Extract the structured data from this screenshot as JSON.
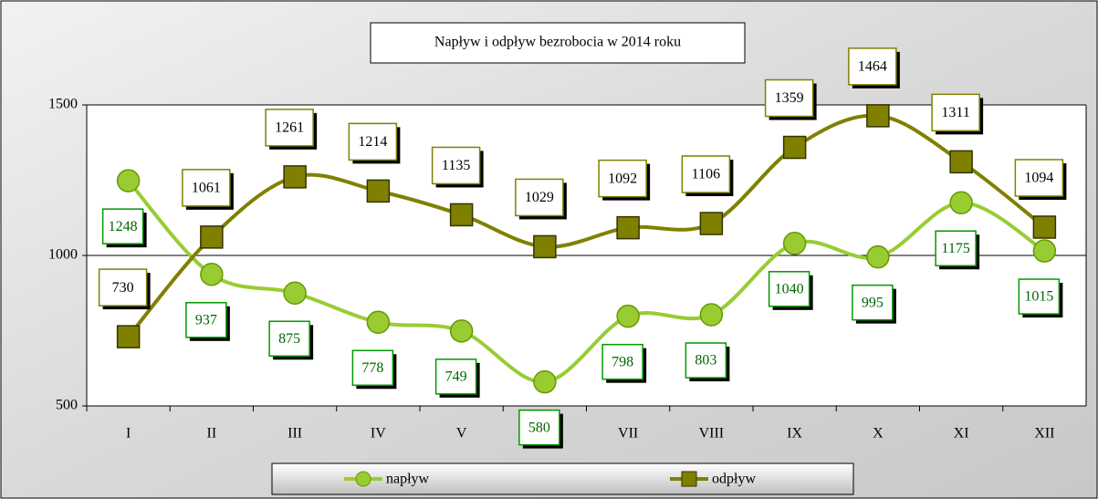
{
  "chart_data": {
    "type": "line",
    "title": "Napływ i odpływ bezrobocia w 2014  roku",
    "categories": [
      "I",
      "II",
      "III",
      "IV",
      "V",
      "VI",
      "VII",
      "VIII",
      "IX",
      "X",
      "XI",
      "XII"
    ],
    "series": [
      {
        "name": "napływ",
        "color": "#99cc33",
        "values": [
          1248,
          937,
          875,
          778,
          749,
          580,
          798,
          803,
          1040,
          995,
          1175,
          1015
        ]
      },
      {
        "name": "odpływ",
        "color": "#808000",
        "values": [
          730,
          1061,
          1261,
          1214,
          1135,
          1029,
          1092,
          1106,
          1359,
          1464,
          1311,
          1094
        ]
      }
    ],
    "ylim": [
      500,
      1500
    ],
    "yticks": [
      500,
      1000,
      1500
    ],
    "grid": true,
    "legend": "bottom"
  }
}
